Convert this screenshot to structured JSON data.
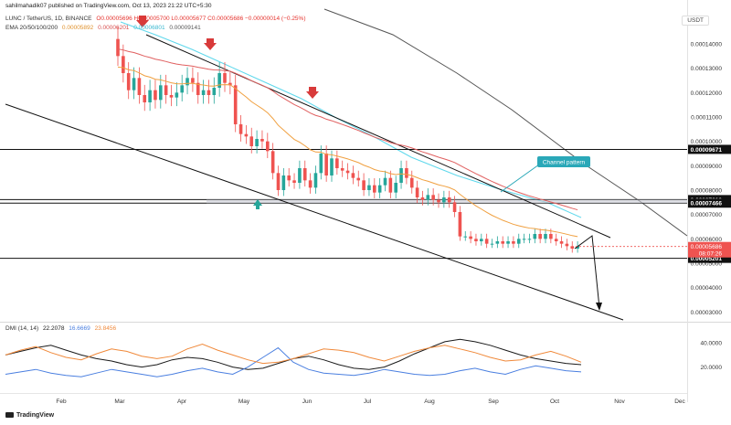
{
  "header": {
    "title": "sahilmahadik07 published on TradingView.com, Oct 13, 2023 21:22 UTC+5:30",
    "symbol": "LUNC / TetherUS, 1D, BINANCE",
    "ohlc": "O0.00005696 H0.00005700 L0.00005677 C0.00005686 −0.00000014 (−0.25%)",
    "ema_label": "EMA 20/50/100/200",
    "ema_values": [
      "0.00005892",
      "0.00006201",
      "0.00006801",
      "0.00009141"
    ],
    "currency": "USDT"
  },
  "dmi": {
    "label": "DMI (14, 14)",
    "values": [
      "22.2078",
      "16.6669",
      "23.8456"
    ]
  },
  "annotation": {
    "text": "Channel pattern"
  },
  "logo": "TradingView",
  "colors": {
    "bull": "#26a69a",
    "bear": "#ef5350",
    "ema20": "#f0a040",
    "ema50": "#e06060",
    "ema100": "#5ed8ec",
    "ema200": "#555555",
    "adx": "#1a1a1a",
    "plus_di": "#4a7fe0",
    "minus_di": "#f0893a",
    "annotation": "#2aa8b8"
  },
  "chart_data": [
    {
      "type": "candlestick",
      "x_ticks": [
        "Feb",
        "Mar",
        "Apr",
        "May",
        "Jun",
        "Jul",
        "Aug",
        "Sep",
        "Oct",
        "Nov",
        "Dec"
      ],
      "y_ticks": [
        0.00014,
        0.00013,
        0.00012,
        0.00011,
        0.0001,
        9e-05,
        8e-05,
        7e-05,
        6e-05,
        5e-05,
        4e-05,
        3e-05
      ],
      "y_tick_labels": [
        "0.00014000",
        "0.00013000",
        "0.00012000",
        "0.00011000",
        "0.00010000",
        "0.00009000",
        "0.00008000",
        "0.00007000",
        "0.00006000",
        "0.00005000",
        "0.00004000",
        "0.00003000"
      ],
      "ylim": [
        2.6e-05,
        0.000155
      ],
      "price_levels": [
        {
          "value": 9.671e-05,
          "label": "0.00009671"
        },
        {
          "value": 7.61e-05,
          "label": "0.00007610"
        },
        {
          "value": 7.466e-05,
          "label": "0.00007466"
        },
        {
          "value": 5.201e-05,
          "label": "0.00005201"
        }
      ],
      "current_price": {
        "value": 5.686e-05,
        "label": "0.00005686",
        "countdown": "08:07:26"
      },
      "closes": [
        0.000135,
        0.000128,
        0.000121,
        0.000126,
        0.000119,
        0.000116,
        0.000121,
        0.000117,
        0.000123,
        0.000119,
        0.000118,
        0.00012,
        0.000123,
        0.000126,
        0.000124,
        0.000119,
        0.000121,
        0.000119,
        0.000122,
        0.000128,
        0.000124,
        0.000123,
        0.000107,
        0.000103,
        0.000102,
        9.8e-05,
        0.000101,
        0.0001,
        9.6e-05,
        8.7e-05,
        8e-05,
        8.6e-05,
        8.4e-05,
        8.3e-05,
        8.9e-05,
        8.4e-05,
        8.1e-05,
        8.7e-05,
        9.5e-05,
        8.6e-05,
        9.3e-05,
        8.9e-05,
        8.8e-05,
        8.7e-05,
        8.5e-05,
        8.4e-05,
        8e-05,
        8.2e-05,
        7.9e-05,
        8.2e-05,
        8.5e-05,
        7.9e-05,
        8.3e-05,
        8.9e-05,
        8.5e-05,
        8.1e-05,
        7.7e-05,
        7.6e-05,
        7.8e-05,
        7.6e-05,
        7.5e-05,
        7.7e-05,
        7.5e-05,
        7.1e-05,
        6.1e-05,
        6.1e-05,
        6e-05,
        5.9e-05,
        6e-05,
        5.8e-05,
        5.8e-05,
        5.9e-05,
        5.8e-05,
        5.9e-05,
        5.8e-05,
        6e-05,
        6e-05,
        6e-05,
        6.2e-05,
        6e-05,
        6.2e-05,
        6e-05,
        5.9e-05,
        5.8e-05,
        5.7e-05,
        5.6e-05,
        5.7e-05
      ],
      "ema_series": [
        "EMA 20",
        "EMA 50",
        "EMA 100",
        "EMA 200"
      ],
      "channel_lines": 2,
      "projection_target": 3.18e-05
    },
    {
      "type": "line",
      "title": "DMI (14, 14)",
      "series": [
        {
          "name": "ADX",
          "values": [
            30,
            33,
            36,
            38,
            34,
            30,
            27,
            25,
            22,
            20,
            22,
            26,
            28,
            27,
            24,
            20,
            18,
            19,
            23,
            27,
            29,
            26,
            22,
            19,
            18,
            20,
            25,
            31,
            36,
            41,
            43,
            41,
            38,
            34,
            30,
            27,
            25,
            23,
            22
          ]
        },
        {
          "name": "+DI",
          "values": [
            14,
            16,
            18,
            15,
            13,
            12,
            15,
            18,
            16,
            14,
            12,
            14,
            17,
            19,
            16,
            14,
            20,
            28,
            36,
            24,
            18,
            15,
            14,
            13,
            15,
            18,
            16,
            14,
            13,
            14,
            17,
            19,
            16,
            14,
            18,
            21,
            19,
            17,
            16
          ]
        },
        {
          "name": "−DI",
          "values": [
            30,
            34,
            37,
            32,
            28,
            26,
            31,
            35,
            33,
            29,
            27,
            29,
            35,
            39,
            34,
            30,
            26,
            23,
            24,
            27,
            31,
            35,
            34,
            32,
            28,
            25,
            29,
            33,
            36,
            38,
            35,
            32,
            28,
            25,
            26,
            30,
            33,
            29,
            24
          ]
        }
      ],
      "y_ticks": [
        "40.0000",
        "20.0000"
      ]
    }
  ]
}
